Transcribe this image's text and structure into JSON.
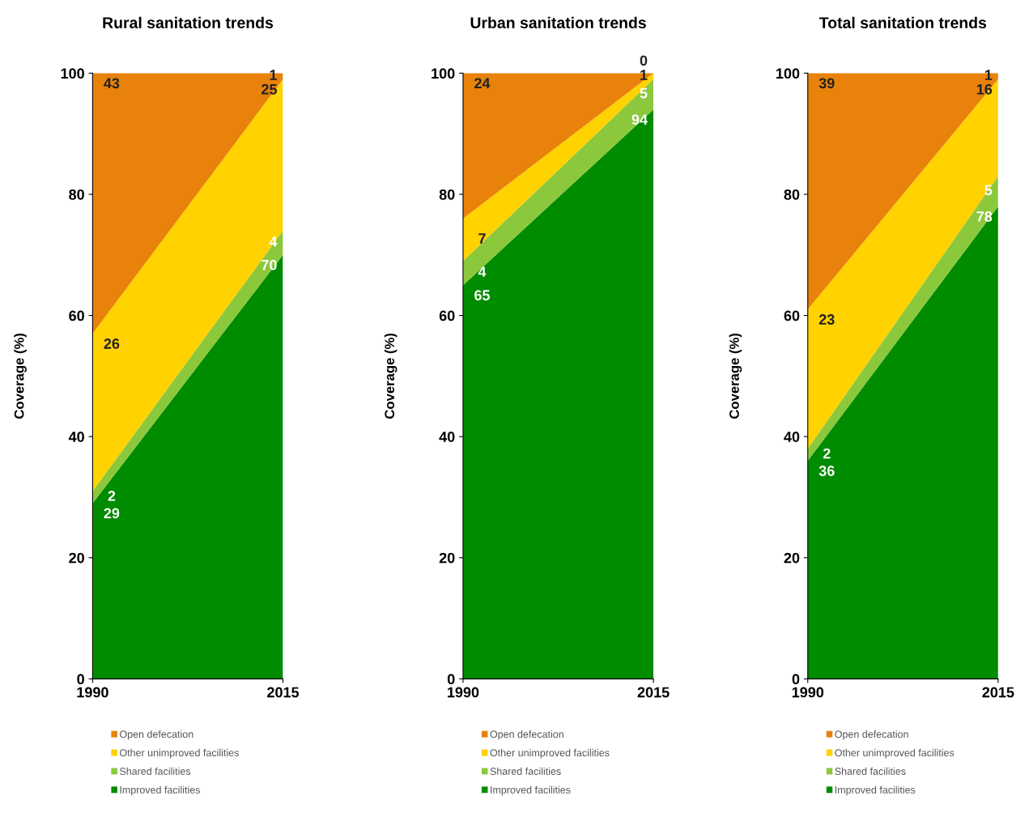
{
  "chart_data": [
    {
      "type": "area",
      "stacked": true,
      "title": "Rural sanitation trends",
      "ylabel": "Coverage (%)",
      "categories": [
        "1990",
        "2015"
      ],
      "ylim": [
        0,
        100
      ],
      "yticks": [
        0,
        20,
        40,
        60,
        80,
        100
      ],
      "grid": false,
      "legend": "bottom",
      "data_labels": true,
      "series": [
        {
          "name": "Improved facilities",
          "color": "#008c00",
          "values": [
            29,
            70
          ]
        },
        {
          "name": "Shared facilities",
          "color": "#8cc83c",
          "values": [
            2,
            4
          ]
        },
        {
          "name": "Other unimproved facilities",
          "color": "#ffd200",
          "values": [
            26,
            25
          ]
        },
        {
          "name": "Open defecation",
          "color": "#e8820a",
          "values": [
            43,
            1
          ]
        }
      ]
    },
    {
      "type": "area",
      "stacked": true,
      "title": "Urban sanitation trends",
      "ylabel": "Coverage (%)",
      "categories": [
        "1990",
        "2015"
      ],
      "ylim": [
        0,
        100
      ],
      "yticks": [
        0,
        20,
        40,
        60,
        80,
        100
      ],
      "grid": false,
      "legend": "bottom",
      "data_labels": true,
      "series": [
        {
          "name": "Improved facilities",
          "color": "#008c00",
          "values": [
            65,
            94
          ]
        },
        {
          "name": "Shared facilities",
          "color": "#8cc83c",
          "values": [
            4,
            5
          ]
        },
        {
          "name": "Other unimproved facilities",
          "color": "#ffd200",
          "values": [
            7,
            1
          ]
        },
        {
          "name": "Open defecation",
          "color": "#e8820a",
          "values": [
            24,
            0
          ]
        }
      ]
    },
    {
      "type": "area",
      "stacked": true,
      "title": "Total sanitation trends",
      "ylabel": "Coverage (%)",
      "categories": [
        "1990",
        "2015"
      ],
      "ylim": [
        0,
        100
      ],
      "yticks": [
        0,
        20,
        40,
        60,
        80,
        100
      ],
      "grid": false,
      "legend": "bottom",
      "data_labels": true,
      "series": [
        {
          "name": "Improved facilities",
          "color": "#008c00",
          "values": [
            36,
            78
          ]
        },
        {
          "name": "Shared facilities",
          "color": "#8cc83c",
          "values": [
            2,
            5
          ]
        },
        {
          "name": "Other unimproved facilities",
          "color": "#ffd200",
          "values": [
            23,
            16
          ]
        },
        {
          "name": "Open defecation",
          "color": "#e8820a",
          "values": [
            39,
            1
          ]
        }
      ]
    }
  ]
}
